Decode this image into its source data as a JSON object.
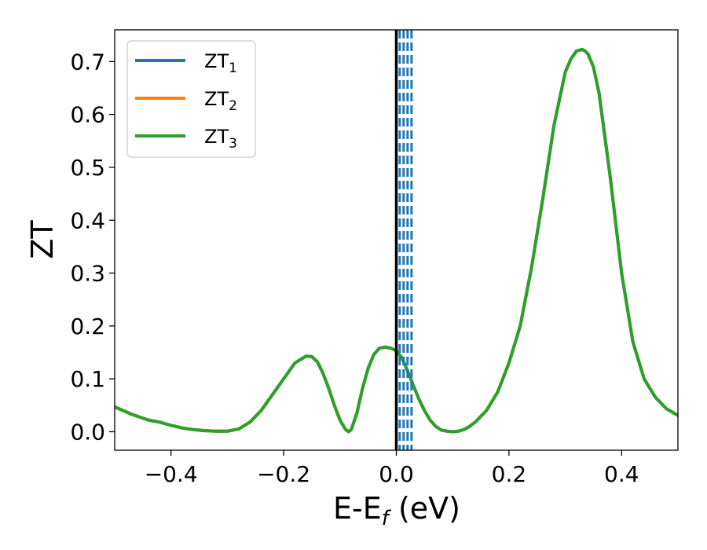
{
  "chart_data": {
    "type": "line",
    "xlabel": {
      "main": "E-E",
      "sub": "f",
      "rest": " (eV)"
    },
    "ylabel": "ZT",
    "xlim": [
      -0.5,
      0.5
    ],
    "ylim": [
      -0.035,
      0.76
    ],
    "xticks": [
      -0.4,
      -0.2,
      0.0,
      0.2,
      0.4
    ],
    "xtick_labels": [
      "−0.4",
      "−0.2",
      "0.0",
      "0.2",
      "0.4"
    ],
    "yticks": [
      0.0,
      0.1,
      0.2,
      0.3,
      0.4,
      0.5,
      0.6,
      0.7
    ],
    "ytick_labels": [
      "0.0",
      "0.1",
      "0.2",
      "0.3",
      "0.4",
      "0.5",
      "0.6",
      "0.7"
    ],
    "grid": false,
    "legend_position": "top-left",
    "legend": [
      {
        "base": "ZT",
        "sub": "1",
        "color": "#1f77b4"
      },
      {
        "base": "ZT",
        "sub": "2",
        "color": "#ff7f0e"
      },
      {
        "base": "ZT",
        "sub": "3",
        "color": "#2ca02c"
      }
    ],
    "x": [
      -0.5,
      -0.47,
      -0.44,
      -0.42,
      -0.4,
      -0.38,
      -0.36,
      -0.34,
      -0.32,
      -0.3,
      -0.28,
      -0.26,
      -0.24,
      -0.22,
      -0.2,
      -0.18,
      -0.16,
      -0.15,
      -0.14,
      -0.13,
      -0.12,
      -0.11,
      -0.1,
      -0.09,
      -0.085,
      -0.08,
      -0.07,
      -0.06,
      -0.05,
      -0.04,
      -0.03,
      -0.02,
      -0.01,
      0.0,
      0.01,
      0.02,
      0.03,
      0.04,
      0.05,
      0.06,
      0.07,
      0.08,
      0.09,
      0.1,
      0.11,
      0.12,
      0.13,
      0.14,
      0.16,
      0.18,
      0.2,
      0.22,
      0.24,
      0.26,
      0.28,
      0.3,
      0.31,
      0.32,
      0.33,
      0.335,
      0.34,
      0.35,
      0.36,
      0.38,
      0.4,
      0.42,
      0.44,
      0.46,
      0.48,
      0.5
    ],
    "y": [
      0.047,
      0.033,
      0.022,
      0.018,
      0.012,
      0.007,
      0.004,
      0.002,
      0.001,
      0.001,
      0.005,
      0.018,
      0.04,
      0.07,
      0.1,
      0.13,
      0.143,
      0.142,
      0.132,
      0.11,
      0.082,
      0.05,
      0.022,
      0.004,
      0.0,
      0.004,
      0.035,
      0.082,
      0.12,
      0.146,
      0.158,
      0.16,
      0.158,
      0.153,
      0.14,
      0.115,
      0.088,
      0.062,
      0.04,
      0.022,
      0.01,
      0.003,
      0.001,
      0.0,
      0.001,
      0.004,
      0.01,
      0.018,
      0.04,
      0.075,
      0.13,
      0.2,
      0.31,
      0.44,
      0.58,
      0.68,
      0.705,
      0.72,
      0.723,
      0.72,
      0.715,
      0.69,
      0.64,
      0.48,
      0.3,
      0.17,
      0.1,
      0.065,
      0.043,
      0.031
    ],
    "series": [
      {
        "name": "ZT1",
        "color": "#1f77b4"
      },
      {
        "name": "ZT2",
        "color": "#ff7f0e"
      },
      {
        "name": "ZT3",
        "color": "#2ca02c"
      }
    ],
    "vline_solid": {
      "x": 0.0,
      "color": "#000000"
    },
    "vlines_dashed": {
      "x": [
        0.006,
        0.013,
        0.02,
        0.027
      ],
      "color": "#1f77b4"
    }
  }
}
